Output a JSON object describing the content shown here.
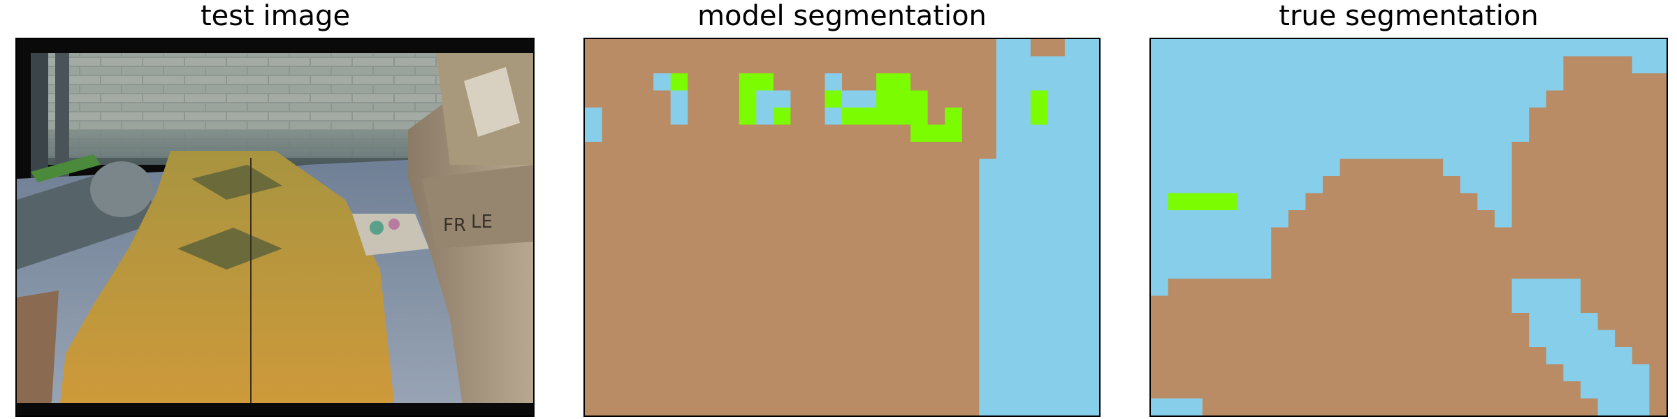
{
  "panels": {
    "test_image": {
      "title": "test image"
    },
    "model_segmentation": {
      "title": "model segmentation"
    },
    "true_segmentation": {
      "title": "true segmentation"
    }
  },
  "legend_colors": {
    "sky_blue": "#87CEEB",
    "brown": "#B98C65",
    "green": "#7CFC00",
    "gray": "#666666"
  },
  "grid": {
    "rows": 22,
    "cols": 30
  },
  "model_segmentation": [
    "BBBBBBBBBBBBBBBBBBBBBBBBSSBBSS",
    "BBBBBBBBBBBBBBBBBBBBBBBBSSSSSS",
    "BBBBSGBBBGGBBBSBBGGBBBBBSSSSSS",
    "BBBBBSBBBGSSBBGSSGGGBBBBSSGSSS",
    "SBBBBSBBBGSGBBSGGGGGBGBBSSGSSS",
    "SBBBBBBBBBBBBBBBBBBGGGBBSSSSSS",
    "BBBBBBBBBBBBBBBBBBBBBBBBSSSSSS",
    "BBBBBBBBBBBBBBBBBBBBBBBSSSSSSS",
    "BBBBBBBBBBBBBBBBBBBBBBBSSSSSSS",
    "BBBBBBBBBBBBBBBBBBBBBBBSSSSSSS",
    "BBBBBBBBBBBBBBBBBBBBBBBSSSSSSS",
    "BBBBBBBBBBBBBBBBBBBBBBBSSSSSSS",
    "BBBBBBBBBBBBBBBBBBBBBBBSSSSSSS",
    "BBBBBBBBBBBBBBBBBBBBBBBSSSSSSS",
    "BBBBBBBBBBBBBBBBBBBBBBBSSSSSSS",
    "BBBBBBBBBBBBBBBBBBBBBBBSSSSSSS",
    "BBBBBBBBBBBBBBBBBBBBBBBSSSSSSS",
    "BBBBBBBBBBBBBBBBBBBBBBBSSSSSSS",
    "BBBBBBBBBBBBBBBBBBBBBBBSSSSSSS",
    "BBBBBBBBBBBBBBBBBBBBBBBSSSSSSS",
    "BBBBBBBBBBBBBBBBBBBBBBBSSSSSSS",
    "BBBBBBBBBBBBBBBBBBBBBBBSSSSSSS"
  ],
  "true_segmentation": [
    "SSSSSSSSSSSSSSSSSSSSSSSSSSSSSS",
    "SSSSSSSSSSSSSSSSSSSSSSSSBBBBSS",
    "SSSSSSSSSSSSSSSSSSSSSSSSBBBBBB",
    "SSSSSSSSSSSSSSSSSSSSSSSBBBBBBB",
    "SSSSSSSSSSSSSSSSSSSSSSBBBBBBBB",
    "SSSSSSSSSSSSSSSSSSSSSSBBBBBBBB",
    "SSSSSSSSSSSSSSSSSSSSSBBBBBBBBB",
    "SSSSSSSSSSSBBBBBBSSSSBBBBBBBBB",
    "SSSSSSSSSSBBBBBBBBSSSBBBBBBBBB",
    "SGGGGSSSSBBBBBBBBBBSSBBBBBBBBB",
    "SSSSSSSSBBBBBBBBBBBBSBBBBBBBBB",
    "SSSSSSSBBBBBBBBBBBBBBBBBBBBBBB",
    "SSSSSSSBBBBBBBBBBBBBBBBBBBBBBB",
    "SSSSSSSBBBBBBBBBBBBBBBBBBBBBBB",
    "SBBBBBBBBBBBBBBBBBBBBSSSSBBBBB",
    "BBBBBBBBBBBBBBBBBBBBBSSSSBBBBB",
    "BBBBBBBBBBBBBBBBBBBBBBSSSSBBBB",
    "BBBBBBBBBBBBBBBBBBBBBBSSSSSBBB",
    "BBBBBBBBBBBBBBBBBBBBBBBSSSSSBB",
    "BBBBBBBBBBBBBBBBBBBBBBBBSSSSSB",
    "BBBBBBBBBBBBBBBBBBBBBBBBBSSSSB",
    "SSSBBBBBBBBBBBBBBBBBBBBBBBSSSB"
  ]
}
